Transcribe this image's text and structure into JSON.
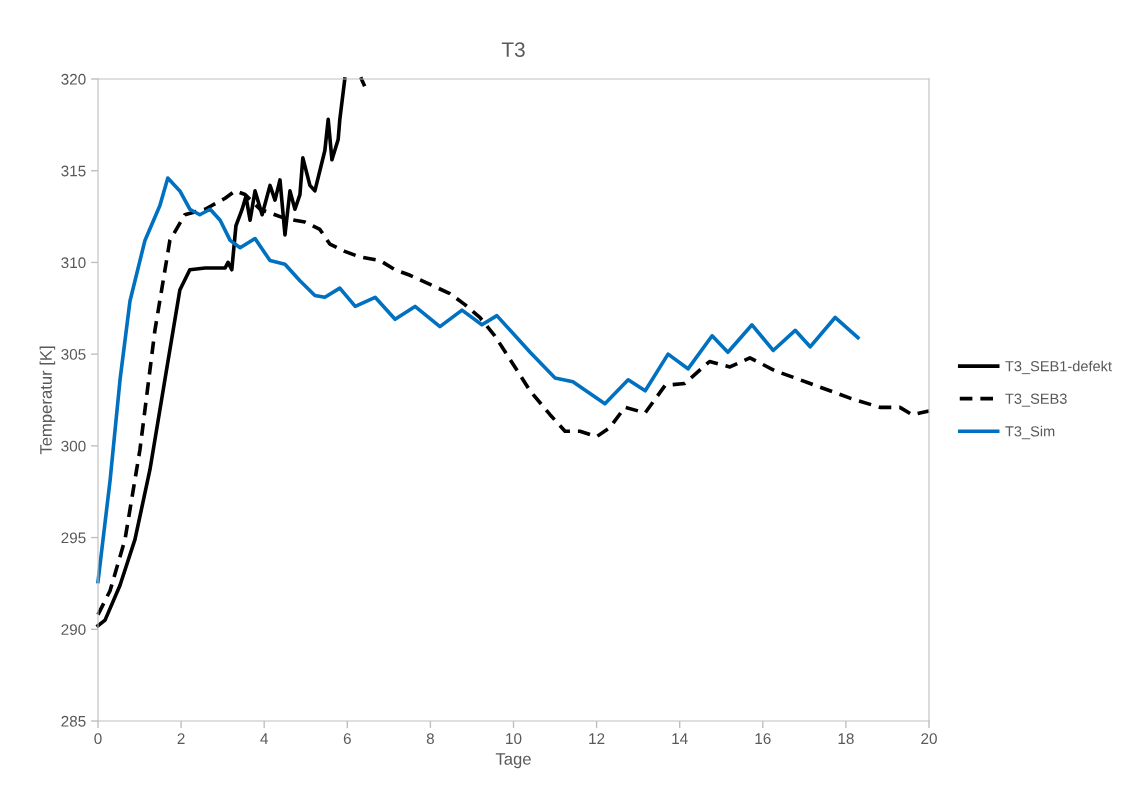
{
  "chart_data": {
    "type": "line",
    "title": "T3",
    "xlabel": "Tage",
    "ylabel": "Temperatur [K]",
    "xlim": [
      0,
      20
    ],
    "xticks": [
      0,
      2,
      4,
      6,
      8,
      10,
      12,
      14,
      16,
      18,
      20
    ],
    "ylim": [
      285,
      320
    ],
    "yticks": [
      285,
      290,
      295,
      300,
      305,
      310,
      315,
      320
    ],
    "grid": false,
    "legend": "right",
    "marker": "none",
    "series": [
      {
        "name": "T3_SEB1-defekt",
        "color": "#000000",
        "line_style": "solid",
        "x": [
          0,
          0.17,
          0.53,
          0.89,
          1.25,
          1.61,
          1.97,
          2.21,
          2.58,
          3.06,
          3.13,
          3.22,
          3.32,
          3.47,
          3.56,
          3.66,
          3.78,
          3.95,
          4.14,
          4.26,
          4.38,
          4.5,
          4.62,
          4.74,
          4.86,
          4.93,
          5.1,
          5.22,
          5.46,
          5.54,
          5.63,
          5.78,
          5.82,
          5.94,
          6.1,
          6.34,
          6.4
        ],
        "values": [
          290.2,
          290.5,
          292.4,
          294.9,
          298.7,
          303.6,
          308.5,
          309.6,
          309.7,
          309.7,
          310.0,
          309.6,
          312.0,
          312.9,
          313.6,
          312.3,
          313.9,
          312.6,
          314.2,
          313.4,
          314.5,
          311.5,
          313.9,
          312.9,
          313.7,
          315.7,
          314.2,
          313.9,
          316.1,
          317.8,
          315.6,
          316.7,
          317.8,
          320,
          null,
          320,
          319.7
        ]
      },
      {
        "name": "T3_SEB3",
        "color": "#000000",
        "line_style": "dashed",
        "x": [
          0,
          0.29,
          0.65,
          1.01,
          1.37,
          1.73,
          2.09,
          2.58,
          3.06,
          3.3,
          3.54,
          3.9,
          4.5,
          4.98,
          5.34,
          5.58,
          5.94,
          6.3,
          6.79,
          7.15,
          7.51,
          7.99,
          8.47,
          8.83,
          9.19,
          9.55,
          9.92,
          10.4,
          10.88,
          11.24,
          11.6,
          12.0,
          12.32,
          12.68,
          13.17,
          13.65,
          14.12,
          14.72,
          15.21,
          15.69,
          16.29,
          17.14,
          18.1,
          18.82,
          19.3,
          19.59,
          20
        ],
        "values": [
          290.8,
          292.1,
          294.9,
          299.8,
          306.3,
          311.2,
          312.6,
          312.9,
          313.5,
          313.9,
          313.7,
          312.9,
          312.4,
          312.2,
          311.8,
          311.0,
          310.6,
          310.3,
          310.1,
          309.6,
          309.3,
          308.8,
          308.3,
          307.7,
          307.0,
          306.0,
          304.7,
          303.0,
          301.7,
          300.8,
          300.8,
          300.5,
          301.0,
          302.1,
          301.8,
          303.3,
          303.4,
          304.6,
          304.3,
          304.8,
          304.1,
          303.4,
          302.6,
          302.1,
          302.1,
          301.7,
          301.9
        ]
      },
      {
        "name": "T3_Sim",
        "color": "#0070c0",
        "line_style": "solid",
        "x": [
          0,
          0.29,
          0.53,
          0.77,
          1.13,
          1.49,
          1.68,
          1.97,
          2.21,
          2.45,
          2.7,
          2.94,
          3.18,
          3.42,
          3.78,
          4.14,
          4.5,
          4.86,
          5.22,
          5.46,
          5.82,
          6.19,
          6.67,
          7.15,
          7.63,
          8.23,
          8.76,
          9.24,
          9.6,
          10.04,
          10.4,
          11.0,
          11.43,
          12.2,
          12.76,
          13.17,
          13.72,
          14.2,
          14.78,
          15.16,
          15.74,
          16.25,
          16.78,
          17.14,
          17.74,
          18.29
        ],
        "values": [
          292.6,
          298.1,
          303.6,
          307.9,
          311.2,
          313.1,
          314.6,
          313.9,
          312.9,
          312.6,
          312.9,
          312.3,
          311.2,
          310.8,
          311.3,
          310.1,
          309.9,
          309.0,
          308.2,
          308.1,
          308.6,
          307.6,
          308.1,
          306.9,
          307.6,
          306.5,
          307.4,
          306.6,
          307.1,
          306.0,
          305.1,
          303.7,
          303.5,
          302.3,
          303.6,
          303.0,
          305.0,
          304.2,
          306.0,
          305.1,
          306.6,
          305.2,
          306.3,
          305.4,
          307.0,
          305.9
        ]
      }
    ]
  }
}
